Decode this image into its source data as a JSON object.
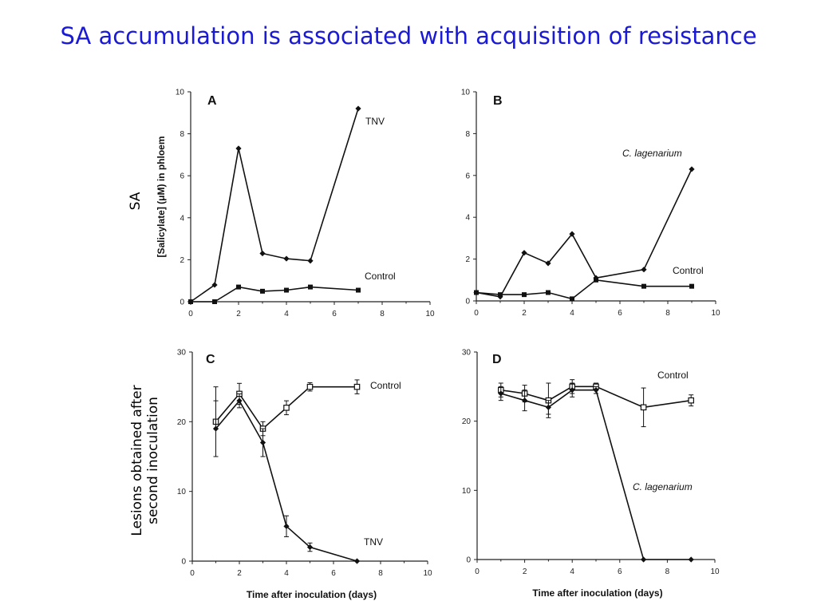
{
  "slide": {
    "title": "SA accumulation is associated with acquisition of resistance",
    "side_label_top": "SA",
    "side_label_bottom_line1": "Lesions obtained after",
    "side_label_bottom_line2": "second inoculation"
  },
  "chart_data": [
    {
      "type": "line",
      "panel": "A",
      "ylabel": "[Salicylate] (μM) in phloem",
      "xlabel": "",
      "xlim": [
        0,
        10
      ],
      "ylim": [
        0,
        10
      ],
      "xticks": [
        0,
        2,
        4,
        6,
        8,
        10
      ],
      "yticks": [
        0,
        2,
        4,
        6,
        8,
        10
      ],
      "series": [
        {
          "name": "TNV",
          "marker": "diamond-filled",
          "x": [
            0,
            1,
            2,
            3,
            4,
            5,
            7
          ],
          "y": [
            0,
            0.8,
            7.3,
            2.3,
            2.05,
            1.95,
            9.2
          ]
        },
        {
          "name": "Control",
          "marker": "square-filled",
          "x": [
            0,
            1,
            2,
            3,
            4,
            5,
            7
          ],
          "y": [
            0,
            0,
            0.7,
            0.5,
            0.55,
            0.7,
            0.55
          ]
        }
      ]
    },
    {
      "type": "line",
      "panel": "B",
      "xlabel": "",
      "ylabel": "",
      "xlim": [
        0,
        10
      ],
      "ylim": [
        0,
        10
      ],
      "xticks": [
        0,
        2,
        4,
        6,
        8,
        10
      ],
      "yticks": [
        0,
        2,
        4,
        6,
        8,
        10
      ],
      "series": [
        {
          "name": "C. lagenarium",
          "marker": "diamond-filled",
          "x": [
            0,
            1,
            2,
            3,
            4,
            5,
            7,
            9
          ],
          "y": [
            0.4,
            0.2,
            2.3,
            1.8,
            3.2,
            1.1,
            1.5,
            6.3
          ]
        },
        {
          "name": "Control",
          "marker": "square-filled",
          "x": [
            0,
            1,
            2,
            3,
            4,
            5,
            7,
            9
          ],
          "y": [
            0.4,
            0.3,
            0.3,
            0.4,
            0.1,
            1.0,
            0.7,
            0.7
          ]
        }
      ]
    },
    {
      "type": "line",
      "panel": "C",
      "xlabel": "Time after inoculation (days)",
      "ylabel": "",
      "xlim": [
        0,
        10
      ],
      "ylim": [
        0,
        30
      ],
      "xticks": [
        0,
        2,
        4,
        6,
        8,
        10
      ],
      "yticks": [
        0,
        10,
        20,
        30
      ],
      "series": [
        {
          "name": "Control",
          "marker": "square-open",
          "x": [
            1,
            2,
            3,
            4,
            5,
            7
          ],
          "y": [
            20,
            24,
            19,
            22,
            25,
            25
          ],
          "err": [
            5,
            1.5,
            1,
            1,
            0.6,
            1
          ]
        },
        {
          "name": "TNV",
          "marker": "diamond-filled",
          "x": [
            1,
            2,
            3,
            4,
            5,
            7
          ],
          "y": [
            19,
            23,
            17,
            5,
            2,
            0
          ],
          "err": [
            4,
            1,
            2,
            1.5,
            0.6,
            0
          ]
        }
      ]
    },
    {
      "type": "line",
      "panel": "D",
      "xlabel": "Time after inoculation (days)",
      "ylabel": "",
      "xlim": [
        0,
        10
      ],
      "ylim": [
        0,
        30
      ],
      "xticks": [
        0,
        2,
        4,
        6,
        8,
        10
      ],
      "yticks": [
        0,
        10,
        20,
        30
      ],
      "series": [
        {
          "name": "Control",
          "marker": "square-open",
          "x": [
            1,
            2,
            3,
            4,
            5,
            7,
            9
          ],
          "y": [
            24.5,
            24,
            23,
            25,
            25,
            22,
            23
          ],
          "err": [
            1,
            1.2,
            2.5,
            1,
            0.5,
            2.8,
            0.8
          ]
        },
        {
          "name": "C. lagenarium",
          "marker": "diamond-filled",
          "x": [
            1,
            2,
            3,
            4,
            5,
            7,
            9
          ],
          "y": [
            24,
            23,
            22,
            24.5,
            24.5,
            0,
            0
          ],
          "err": [
            1,
            1.5,
            1,
            1,
            0.5,
            0,
            0
          ]
        }
      ]
    }
  ]
}
